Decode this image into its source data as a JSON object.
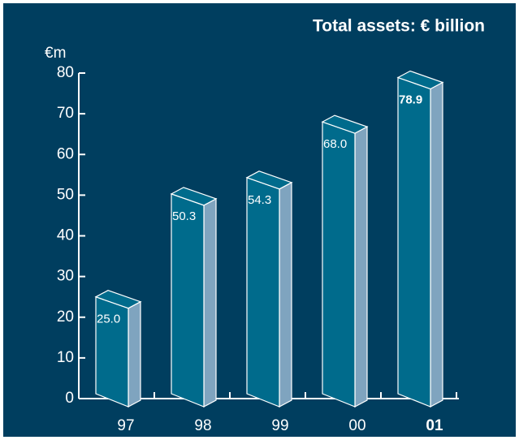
{
  "chart_data": {
    "type": "bar3d",
    "title": "Total assets: € billion",
    "y_label": "€m",
    "categories": [
      "97",
      "98",
      "99",
      "00",
      "01"
    ],
    "values": [
      25.0,
      50.3,
      54.3,
      68.0,
      78.9
    ],
    "value_labels": [
      "25.0",
      "50.3",
      "54.3",
      "68.0",
      "78.9"
    ],
    "color": "#006b8c",
    "ylim": [
      0,
      80
    ],
    "yticks": [
      0,
      10,
      20,
      30,
      40,
      50,
      60,
      70,
      80
    ]
  }
}
